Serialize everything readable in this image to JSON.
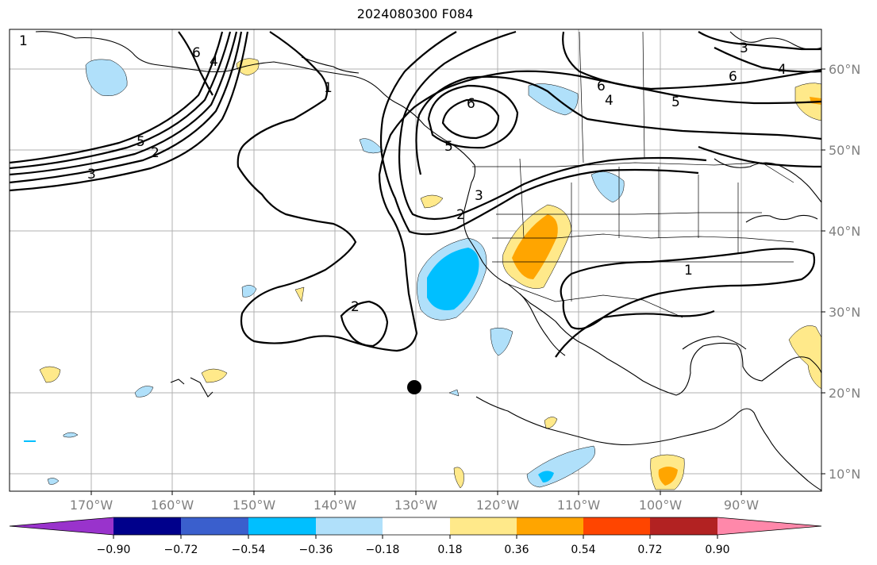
{
  "title": "2024080300 F084",
  "latitude_labels": [
    "60°N",
    "50°N",
    "40°N",
    "30°N",
    "20°N",
    "10°N"
  ],
  "longitude_labels": [
    "170°W",
    "160°W",
    "150°W",
    "140°W",
    "130°W",
    "120°W",
    "110°W",
    "100°W",
    "90°W"
  ],
  "contour_labels": [
    "6",
    "4",
    "5",
    "3",
    "2",
    "1",
    "6",
    "5",
    "3",
    "2",
    "2",
    "1",
    "6",
    "4",
    "5",
    "6",
    "4",
    "3",
    "1"
  ],
  "colorbar": {
    "tick_labels": [
      "−0.90",
      "−0.72",
      "−0.54",
      "−0.36",
      "−0.18",
      "0.18",
      "0.36",
      "0.54",
      "0.72",
      "0.90"
    ],
    "colors": [
      "#9933cc",
      "#00008b",
      "#3a5fcd",
      "#00bfff",
      "#b0e0fa",
      "#ffffff",
      "#ffe98a",
      "#ffa500",
      "#ff4500",
      "#b22222",
      "#ff88aa"
    ]
  },
  "marker": {
    "name": "storm-center-dot",
    "color": "#000000"
  }
}
